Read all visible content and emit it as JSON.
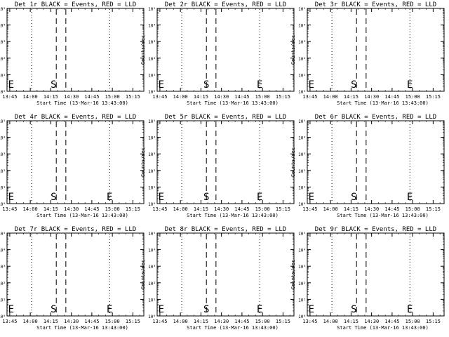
{
  "common": {
    "xlabel": "Start Time (13-Mar-16 13:43:00)",
    "ylabel": "Counts/sec",
    "x_ticks": [
      "13:45",
      "14:00",
      "14:15",
      "14:30",
      "14:45",
      "15:00",
      "15:15"
    ],
    "y_ticks": [
      "10⁰",
      "10¹",
      "10²",
      "10³",
      "10⁴",
      "10⁵"
    ],
    "y_scale": "log",
    "marker_S": "S",
    "marker_E": "E"
  },
  "chart_data": [
    {
      "type": "line",
      "title": "Det 1r BLACK = Events, RED = LLD",
      "xlabel": "Start Time (13-Mar-16 13:43:00)",
      "ylabel": "Counts/sec",
      "y_scale": "log",
      "ylim_exp": [
        0,
        5
      ],
      "x_tick_labels": [
        "13:45",
        "14:00",
        "14:15",
        "14:30",
        "14:45",
        "15:00",
        "15:15"
      ],
      "dotted_lines": [
        "14:01",
        "14:58"
      ],
      "dashed_lines": [
        "14:19",
        "14:26"
      ],
      "markers": [
        {
          "text": "E",
          "x": "13:46"
        },
        {
          "text": "S",
          "x": "14:17"
        }
      ],
      "series": []
    },
    {
      "type": "line",
      "title": "Det 2r BLACK = Events, RED = LLD",
      "xlabel": "Start Time (13-Mar-16 13:43:00)",
      "ylabel": "Counts/sec",
      "y_scale": "log",
      "ylim_exp": [
        0,
        5
      ],
      "x_tick_labels": [
        "13:45",
        "14:00",
        "14:15",
        "14:30",
        "14:45",
        "15:00",
        "15:15"
      ],
      "dotted_lines": [
        "14:01",
        "14:58"
      ],
      "dashed_lines": [
        "14:19",
        "14:26"
      ],
      "markers": [
        {
          "text": "E",
          "x": "13:46"
        },
        {
          "text": "S",
          "x": "14:19"
        },
        {
          "text": "E",
          "x": "14:58"
        }
      ],
      "series": []
    },
    {
      "type": "line",
      "title": "Det 3r BLACK = Events, RED = LLD",
      "xlabel": "Start Time (13-Mar-16 13:43:00)",
      "ylabel": "Counts/sec",
      "y_scale": "log",
      "ylim_exp": [
        0,
        5
      ],
      "x_tick_labels": [
        "13:45",
        "14:00",
        "14:15",
        "14:30",
        "14:45",
        "15:00",
        "15:15"
      ],
      "dotted_lines": [
        "14:01",
        "14:58"
      ],
      "dashed_lines": [
        "14:19",
        "14:26"
      ],
      "markers": [
        {
          "text": "E",
          "x": "13:46"
        },
        {
          "text": "S",
          "x": "14:17"
        },
        {
          "text": "E",
          "x": "14:58"
        }
      ],
      "series": []
    },
    {
      "type": "line",
      "title": "Det 4r BLACK = Events, RED = LLD",
      "xlabel": "Start Time (13-Mar-16 13:43:00)",
      "ylabel": "Counts/sec",
      "y_scale": "log",
      "ylim_exp": [
        0,
        5
      ],
      "x_tick_labels": [
        "13:45",
        "14:00",
        "14:15",
        "14:30",
        "14:45",
        "15:00",
        "15:15"
      ],
      "dotted_lines": [
        "14:01",
        "14:58"
      ],
      "dashed_lines": [
        "14:19",
        "14:26"
      ],
      "markers": [
        {
          "text": "E",
          "x": "13:46"
        },
        {
          "text": "S",
          "x": "14:17"
        },
        {
          "text": "E",
          "x": "14:58"
        }
      ],
      "series": []
    },
    {
      "type": "line",
      "title": "Det 5r BLACK = Events, RED = LLD",
      "xlabel": "Start Time (13-Mar-16 13:43:00)",
      "ylabel": "Counts/sec",
      "y_scale": "log",
      "ylim_exp": [
        0,
        5
      ],
      "x_tick_labels": [
        "13:45",
        "14:00",
        "14:15",
        "14:30",
        "14:45",
        "15:00",
        "15:15"
      ],
      "dotted_lines": [
        "14:01",
        "14:58"
      ],
      "dashed_lines": [
        "14:19",
        "14:26"
      ],
      "markers": [
        {
          "text": "E",
          "x": "13:46"
        },
        {
          "text": "S",
          "x": "14:19"
        },
        {
          "text": "E",
          "x": "14:58"
        }
      ],
      "series": []
    },
    {
      "type": "line",
      "title": "Det 6r BLACK = Events, RED = LLD",
      "xlabel": "Start Time (13-Mar-16 13:43:00)",
      "ylabel": "Counts/sec",
      "y_scale": "log",
      "ylim_exp": [
        0,
        5
      ],
      "x_tick_labels": [
        "13:45",
        "14:00",
        "14:15",
        "14:30",
        "14:45",
        "15:00",
        "15:15"
      ],
      "dotted_lines": [
        "14:01",
        "14:58"
      ],
      "dashed_lines": [
        "14:19",
        "14:26"
      ],
      "markers": [
        {
          "text": "E",
          "x": "13:46"
        },
        {
          "text": "S",
          "x": "14:17"
        },
        {
          "text": "E",
          "x": "14:58"
        }
      ],
      "series": []
    },
    {
      "type": "line",
      "title": "Det 7r BLACK = Events, RED = LLD",
      "xlabel": "Start Time (13-Mar-16 13:43:00)",
      "ylabel": "Counts/sec",
      "y_scale": "log",
      "ylim_exp": [
        0,
        5
      ],
      "x_tick_labels": [
        "13:45",
        "14:00",
        "14:15",
        "14:30",
        "14:45",
        "15:00",
        "15:15"
      ],
      "dotted_lines": [
        "14:01",
        "14:58"
      ],
      "dashed_lines": [
        "14:19",
        "14:26"
      ],
      "markers": [
        {
          "text": "E",
          "x": "13:46"
        },
        {
          "text": "S",
          "x": "14:17"
        },
        {
          "text": "E",
          "x": "14:58"
        }
      ],
      "series": []
    },
    {
      "type": "line",
      "title": "Det 8r BLACK = Events, RED = LLD",
      "xlabel": "Start Time (13-Mar-16 13:43:00)",
      "ylabel": "Counts/sec",
      "y_scale": "log",
      "ylim_exp": [
        0,
        5
      ],
      "x_tick_labels": [
        "13:45",
        "14:00",
        "14:15",
        "14:30",
        "14:45",
        "15:00",
        "15:15"
      ],
      "dotted_lines": [
        "14:01",
        "14:58"
      ],
      "dashed_lines": [
        "14:19",
        "14:26"
      ],
      "markers": [
        {
          "text": "E",
          "x": "13:46"
        },
        {
          "text": "S",
          "x": "14:19"
        },
        {
          "text": "E",
          "x": "14:58"
        }
      ],
      "series": []
    },
    {
      "type": "line",
      "title": "Det 9r BLACK = Events, RED = LLD",
      "xlabel": "Start Time (13-Mar-16 13:43:00)",
      "ylabel": "Counts/sec",
      "y_scale": "log",
      "ylim_exp": [
        0,
        5
      ],
      "x_tick_labels": [
        "13:45",
        "14:00",
        "14:15",
        "14:30",
        "14:45",
        "15:00",
        "15:15"
      ],
      "dotted_lines": [
        "14:01",
        "14:58"
      ],
      "dashed_lines": [
        "14:19",
        "14:26"
      ],
      "markers": [
        {
          "text": "E",
          "x": "13:46"
        },
        {
          "text": "S",
          "x": "14:17"
        },
        {
          "text": "E",
          "x": "14:58"
        }
      ],
      "series": []
    }
  ]
}
